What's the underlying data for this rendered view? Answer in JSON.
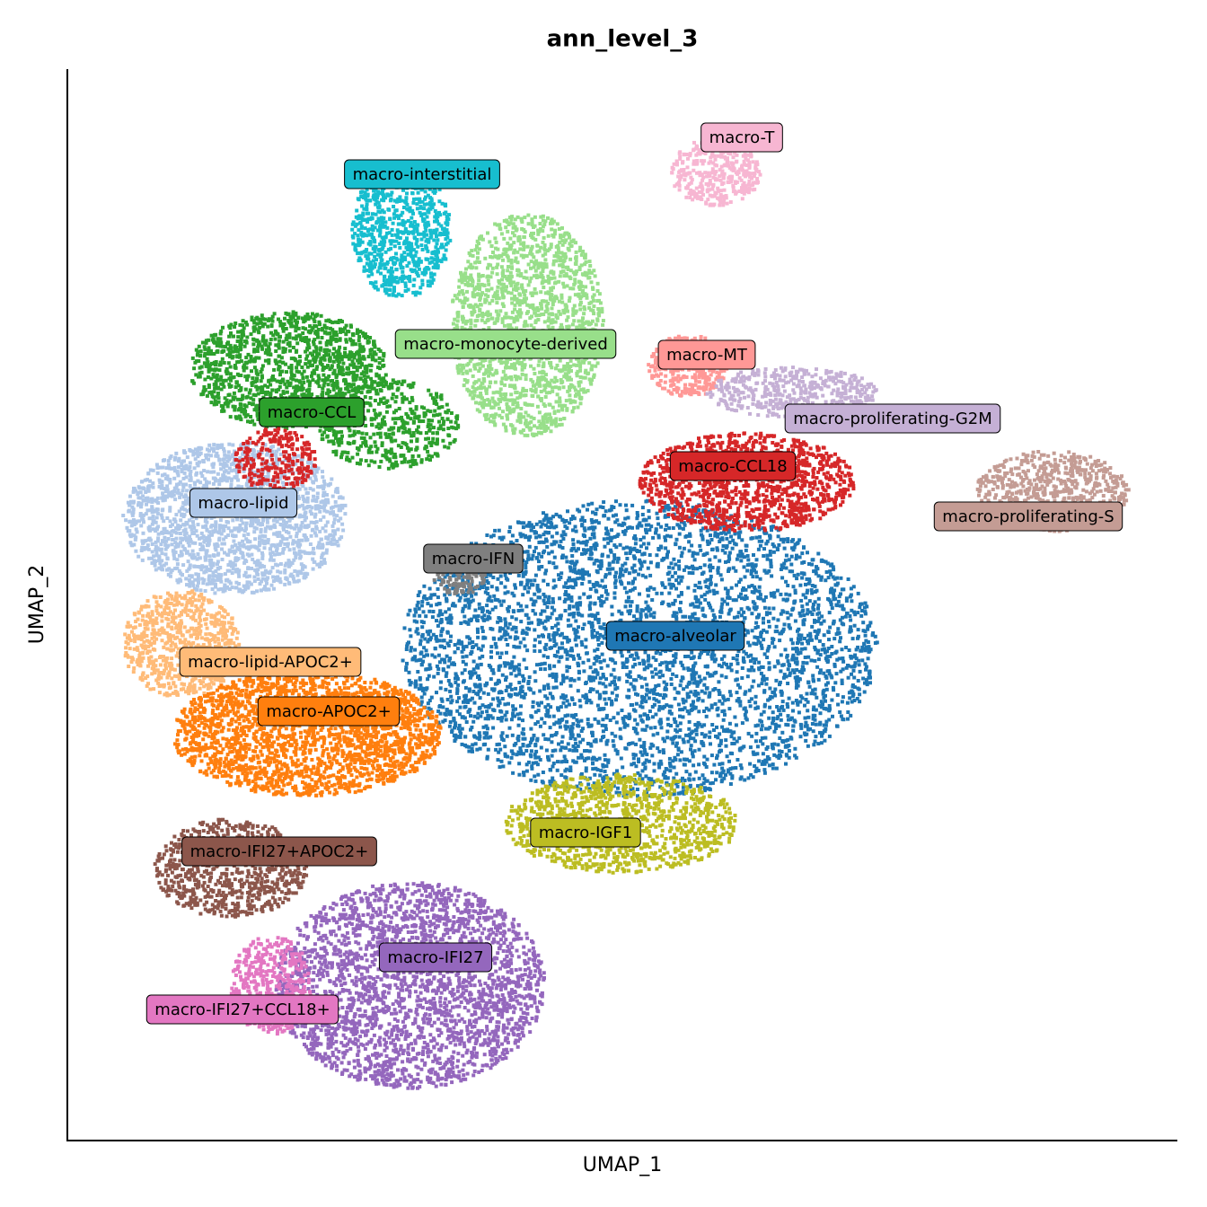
{
  "chart_data": {
    "type": "scatter",
    "title": "ann_level_3",
    "x_label": "UMAP_1",
    "y_label": "UMAP_2",
    "series": [
      {
        "name": "macro-alveolar",
        "color": "#1f77b4"
      },
      {
        "name": "macro-CCL",
        "color": "#2ca02c"
      },
      {
        "name": "macro-monocyte-derived",
        "color": "#98df8a"
      },
      {
        "name": "macro-interstitial",
        "color": "#17becf"
      },
      {
        "name": "macro-lipid",
        "color": "#aec7e8"
      },
      {
        "name": "macro-CCL18",
        "color": "#d62728"
      },
      {
        "name": "macro-MT",
        "color": "#ff9896"
      },
      {
        "name": "macro-proliferating-G2M",
        "color": "#c5b0d5"
      },
      {
        "name": "macro-proliferating-S",
        "color": "#c49c94"
      },
      {
        "name": "macro-T",
        "color": "#f7b6d2"
      },
      {
        "name": "macro-IFN",
        "color": "#7f7f7f"
      },
      {
        "name": "macro-lipid-APOC2+",
        "color": "#ffbb78"
      },
      {
        "name": "macro-APOC2+",
        "color": "#ff7f0e"
      },
      {
        "name": "macro-IGF1",
        "color": "#bcbd22"
      },
      {
        "name": "macro-IFI27+APOC2+",
        "color": "#8c564b"
      },
      {
        "name": "macro-IFI27",
        "color": "#9467bd"
      },
      {
        "name": "macro-IFI27+CCL18+",
        "color": "#e377c2"
      }
    ]
  }
}
